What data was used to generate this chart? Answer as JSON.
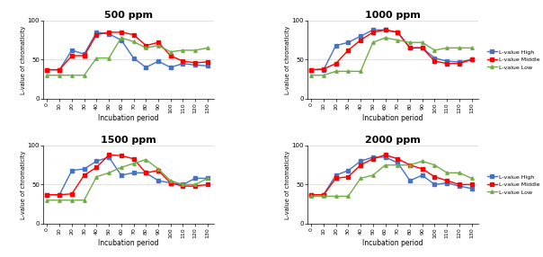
{
  "x": [
    0,
    10,
    20,
    30,
    40,
    50,
    60,
    70,
    80,
    90,
    100,
    110,
    120,
    130
  ],
  "panels": [
    {
      "title": "500 ppm",
      "high": [
        37,
        37,
        62,
        57,
        85,
        83,
        75,
        52,
        40,
        48,
        40,
        45,
        43,
        42
      ],
      "middle": [
        37,
        37,
        55,
        55,
        82,
        85,
        85,
        82,
        68,
        72,
        55,
        48,
        46,
        47
      ],
      "low": [
        30,
        30,
        30,
        30,
        52,
        52,
        78,
        73,
        65,
        68,
        60,
        62,
        62,
        65
      ]
    },
    {
      "title": "1000 ppm",
      "high": [
        37,
        37,
        68,
        72,
        80,
        88,
        88,
        85,
        65,
        65,
        52,
        48,
        47,
        50
      ],
      "middle": [
        37,
        38,
        45,
        62,
        75,
        85,
        88,
        85,
        65,
        65,
        48,
        45,
        45,
        50
      ],
      "low": [
        30,
        30,
        35,
        35,
        35,
        72,
        78,
        75,
        72,
        72,
        62,
        65,
        65,
        65
      ]
    },
    {
      "title": "1500 ppm",
      "high": [
        37,
        37,
        68,
        70,
        80,
        85,
        62,
        65,
        65,
        55,
        52,
        50,
        58,
        58
      ],
      "middle": [
        37,
        37,
        38,
        62,
        72,
        88,
        87,
        83,
        65,
        68,
        52,
        48,
        48,
        50
      ],
      "low": [
        30,
        30,
        30,
        30,
        60,
        65,
        72,
        77,
        82,
        70,
        55,
        50,
        50,
        58
      ]
    },
    {
      "title": "2000 ppm",
      "high": [
        37,
        37,
        62,
        68,
        80,
        85,
        85,
        78,
        55,
        62,
        50,
        52,
        48,
        45
      ],
      "middle": [
        37,
        37,
        58,
        60,
        75,
        83,
        88,
        83,
        75,
        70,
        60,
        55,
        50,
        50
      ],
      "low": [
        35,
        35,
        35,
        35,
        58,
        62,
        75,
        75,
        75,
        80,
        75,
        65,
        65,
        58
      ]
    }
  ],
  "colors": {
    "high": "#4472C4",
    "middle": "#FF0000",
    "low": "#70AD47"
  },
  "legend_labels": [
    "L-value High",
    "L-value Middle",
    "L-value Low"
  ],
  "ylabel": "L-value of chromaticity",
  "xlabel": "Incubation period",
  "ylim": [
    0,
    100
  ],
  "xtick_labels": [
    "0",
    "10",
    "20",
    "30",
    "40",
    "50",
    "60",
    "70",
    "80",
    "90",
    "100",
    "110",
    "120",
    "130"
  ]
}
